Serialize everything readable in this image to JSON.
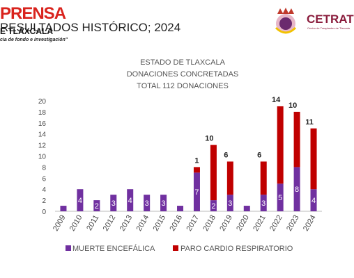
{
  "header": {
    "brand": "PRENSA",
    "headline": "RESULTADOS HISTÓRICO; 2024",
    "brand_sub": "E TLAXCALA",
    "slogan": "cia de fondo e investigación\"",
    "partner_logo": "CETRAT",
    "partner_sub": "Centro de Trasplantes de Tlaxcala"
  },
  "chart_data": {
    "type": "bar",
    "stacked": true,
    "title": [
      "ESTADO DE TLAXCALA",
      "DONACIONES CONCRETADAS",
      "TOTAL 112 DONACIONES"
    ],
    "categories": [
      "2009",
      "2010",
      "2011",
      "2012",
      "2013",
      "2014",
      "2015",
      "2016",
      "2017",
      "2018",
      "2019",
      "2020",
      "2021",
      "2022",
      "2023",
      "2024"
    ],
    "series": [
      {
        "name": "MUERTE ENCEFÁLICA",
        "color": "#7030a0",
        "values": [
          1,
          4,
          2,
          3,
          4,
          3,
          3,
          1,
          7,
          2,
          3,
          1,
          3,
          5,
          8,
          4
        ],
        "labels": [
          "",
          "4",
          "2",
          "3",
          "4",
          "3",
          "3",
          "",
          "7",
          "2",
          "3",
          "",
          "3",
          "5",
          "8",
          "4"
        ]
      },
      {
        "name": "PARO CARDIO RESPIRATORIO",
        "color": "#c00000",
        "values": [
          0,
          0,
          0,
          0,
          0,
          0,
          0,
          0,
          1,
          10,
          6,
          0,
          6,
          14,
          10,
          11
        ],
        "labels": [
          "",
          "",
          "",
          "",
          "",
          "",
          "",
          "",
          "1",
          "10",
          "6",
          "",
          "6",
          "14",
          "10",
          "11"
        ]
      }
    ],
    "ylim": [
      0,
      20
    ],
    "yticks": [
      0,
      2,
      4,
      6,
      8,
      10,
      12,
      14,
      16,
      18,
      20
    ],
    "legend_position": "bottom",
    "grid": false
  }
}
